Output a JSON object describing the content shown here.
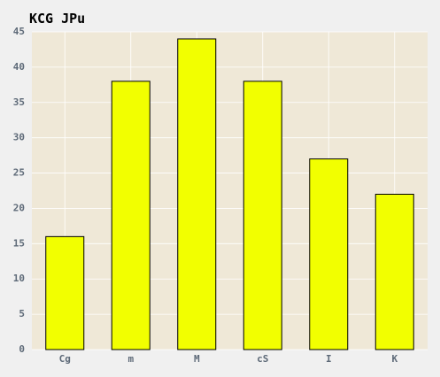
{
  "chart_data": {
    "type": "bar",
    "title": "KCG JPu",
    "xlabel": "",
    "ylabel": "",
    "categories": [
      "Cg",
      "m",
      "M",
      "cS",
      "I",
      "K"
    ],
    "values": [
      16,
      38,
      44,
      38,
      27,
      22
    ],
    "ylim": [
      0,
      45
    ],
    "yticks": [
      "0",
      "5",
      "10",
      "15",
      "20",
      "25",
      "30",
      "35",
      "40",
      "45"
    ],
    "grid": true,
    "legend": "none",
    "colors": {
      "bar": "#f2ff00",
      "bar_edge": "#000000",
      "plot_background": "#efe8d7",
      "page_background": "#f0f0f0",
      "grid": "#ffffff",
      "tick_text": "#5e6a78"
    }
  }
}
